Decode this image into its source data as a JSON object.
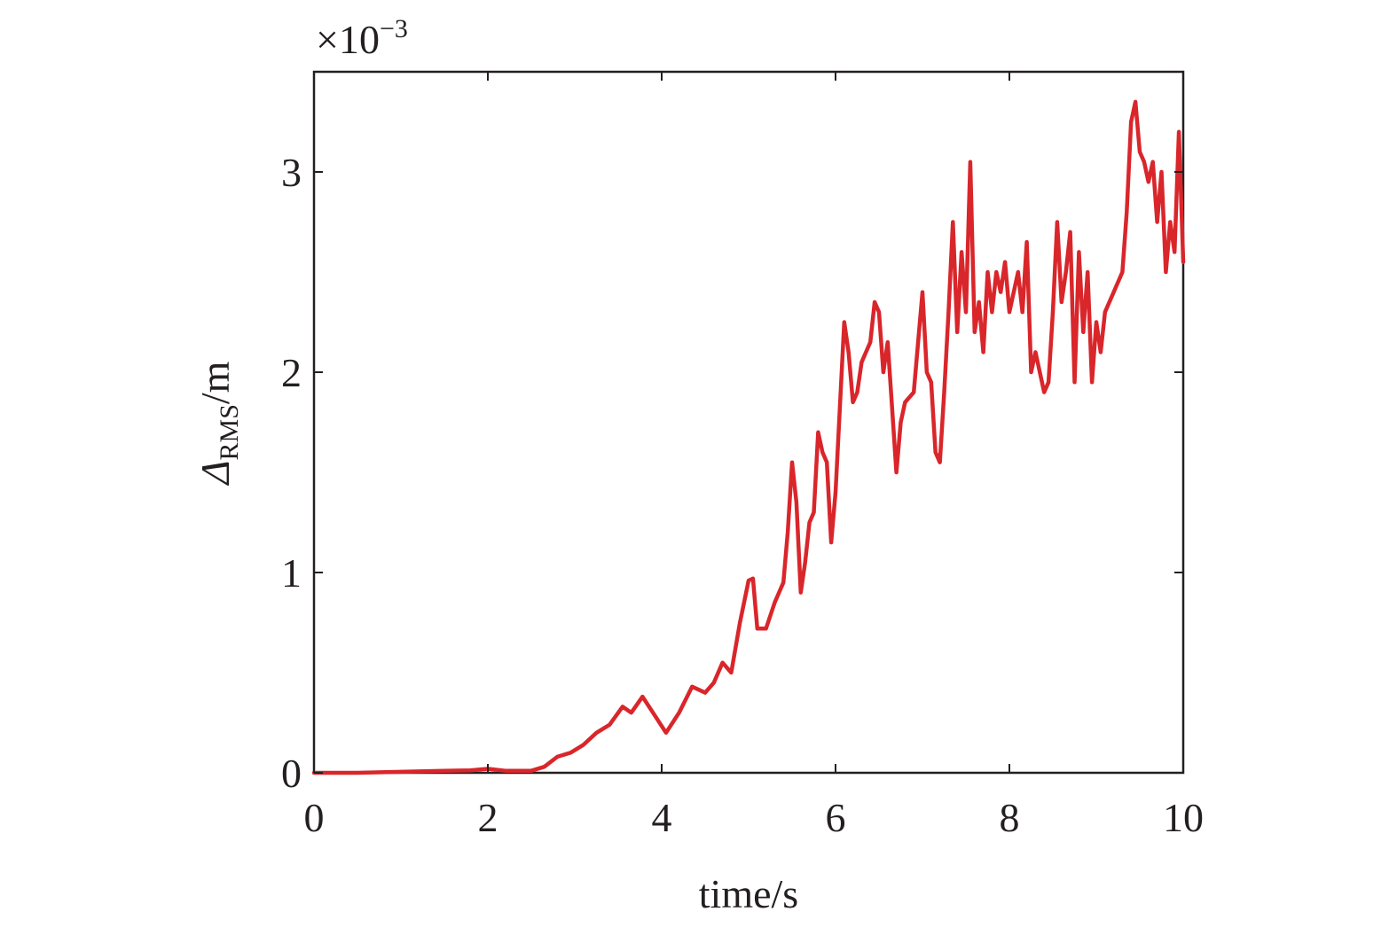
{
  "chart_data": {
    "type": "line",
    "title": "",
    "xlabel": "time/s",
    "ylabel": {
      "symbol": "Δ",
      "subscript": "RMS",
      "unit": "/m"
    },
    "y_multiplier": {
      "base": "×10",
      "exponent": "−3"
    },
    "xlim": [
      0,
      10
    ],
    "ylim": [
      0,
      3.5
    ],
    "xticks": [
      0,
      2,
      4,
      6,
      8,
      10
    ],
    "xtick_labels": [
      "0",
      "2",
      "4",
      "6",
      "8",
      "10"
    ],
    "yticks": [
      0,
      1,
      2,
      3
    ],
    "ytick_labels": [
      "0",
      "1",
      "2",
      "3"
    ],
    "grid": false,
    "line_color": "#d9262b",
    "series": [
      {
        "x": [
          0,
          0.5,
          1.0,
          1.5,
          1.8,
          2.0,
          2.2,
          2.5,
          2.65,
          2.8,
          2.95,
          3.1,
          3.25,
          3.4,
          3.55,
          3.65,
          3.78,
          3.9,
          4.05,
          4.2,
          4.35,
          4.5,
          4.6,
          4.7,
          4.8,
          4.9,
          5.0,
          5.05,
          5.1,
          5.2,
          5.3,
          5.4,
          5.45,
          5.5,
          5.55,
          5.6,
          5.65,
          5.7,
          5.75,
          5.8,
          5.85,
          5.9,
          5.95,
          6.0,
          6.1,
          6.15,
          6.2,
          6.25,
          6.3,
          6.4,
          6.45,
          6.5,
          6.55,
          6.6,
          6.7,
          6.75,
          6.8,
          6.9,
          7.0,
          7.05,
          7.1,
          7.15,
          7.2,
          7.25,
          7.3,
          7.35,
          7.4,
          7.45,
          7.5,
          7.55,
          7.6,
          7.65,
          7.7,
          7.75,
          7.8,
          7.85,
          7.9,
          7.95,
          8.0,
          8.05,
          8.1,
          8.15,
          8.2,
          8.25,
          8.3,
          8.35,
          8.4,
          8.45,
          8.5,
          8.55,
          8.6,
          8.65,
          8.7,
          8.75,
          8.8,
          8.85,
          8.9,
          8.95,
          9.0,
          9.05,
          9.1,
          9.2,
          9.3,
          9.35,
          9.4,
          9.45,
          9.5,
          9.55,
          9.6,
          9.65,
          9.7,
          9.75,
          9.8,
          9.85,
          9.9,
          9.95,
          10.0
        ],
        "y": [
          0,
          0,
          0.005,
          0.01,
          0.012,
          0.02,
          0.01,
          0.01,
          0.03,
          0.08,
          0.1,
          0.14,
          0.2,
          0.24,
          0.33,
          0.3,
          0.38,
          0.3,
          0.2,
          0.3,
          0.43,
          0.4,
          0.45,
          0.55,
          0.5,
          0.75,
          0.96,
          0.97,
          0.72,
          0.72,
          0.85,
          0.95,
          1.2,
          1.55,
          1.35,
          0.9,
          1.05,
          1.25,
          1.3,
          1.7,
          1.6,
          1.55,
          1.15,
          1.4,
          2.25,
          2.1,
          1.85,
          1.9,
          2.05,
          2.15,
          2.35,
          2.3,
          2.0,
          2.15,
          1.5,
          1.75,
          1.85,
          1.9,
          2.4,
          2.0,
          1.95,
          1.6,
          1.55,
          1.9,
          2.3,
          2.75,
          2.2,
          2.6,
          2.3,
          3.05,
          2.2,
          2.35,
          2.1,
          2.5,
          2.3,
          2.5,
          2.4,
          2.55,
          2.3,
          2.4,
          2.5,
          2.3,
          2.65,
          2.0,
          2.1,
          2.0,
          1.9,
          1.95,
          2.3,
          2.75,
          2.35,
          2.5,
          2.7,
          1.95,
          2.6,
          2.2,
          2.5,
          1.95,
          2.25,
          2.1,
          2.3,
          2.4,
          2.5,
          2.8,
          3.25,
          3.35,
          3.1,
          3.05,
          2.95,
          3.05,
          2.75,
          3.0,
          2.5,
          2.75,
          2.6,
          3.2,
          2.55
        ]
      }
    ]
  }
}
